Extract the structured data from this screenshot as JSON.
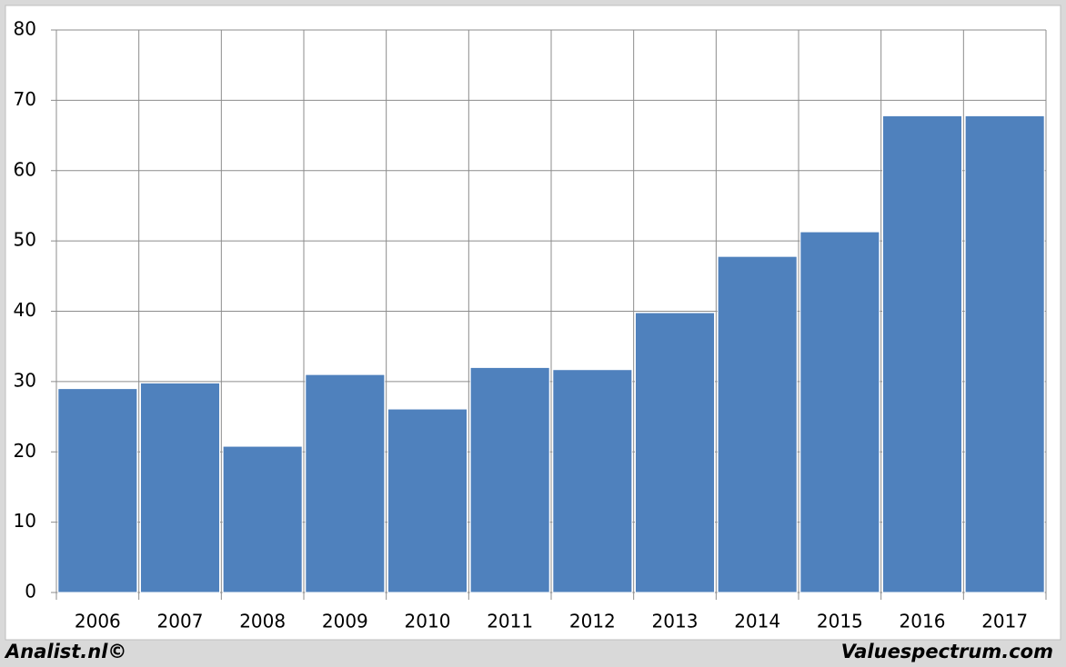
{
  "chart_data": {
    "type": "bar",
    "categories": [
      "2006",
      "2007",
      "2008",
      "2009",
      "2010",
      "2011",
      "2012",
      "2013",
      "2014",
      "2015",
      "2016",
      "2017"
    ],
    "values": [
      29,
      29.8,
      20.8,
      31,
      26.1,
      32,
      31.7,
      39.8,
      47.8,
      51.3,
      67.8,
      67.8
    ],
    "color": "#4f81bd",
    "ylim": [
      0,
      80
    ],
    "yticks": [
      0,
      10,
      20,
      30,
      40,
      50,
      60,
      70,
      80
    ],
    "grid": true,
    "footer_left": "Analist.nl©",
    "footer_right": "Valuespectrum.com"
  }
}
